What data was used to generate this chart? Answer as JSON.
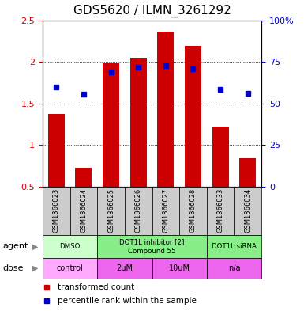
{
  "title": "GDS5620 / ILMN_3261292",
  "samples": [
    "GSM1366023",
    "GSM1366024",
    "GSM1366025",
    "GSM1366026",
    "GSM1366027",
    "GSM1366028",
    "GSM1366033",
    "GSM1366034"
  ],
  "bar_values": [
    1.37,
    0.73,
    1.98,
    2.05,
    2.36,
    2.19,
    1.22,
    0.84
  ],
  "dot_values": [
    1.7,
    1.61,
    1.88,
    1.93,
    1.95,
    1.92,
    1.67,
    1.62
  ],
  "bar_bottom": 0.5,
  "ylim": [
    0.5,
    2.5
  ],
  "y2lim": [
    0,
    100
  ],
  "yticks": [
    0.5,
    1.0,
    1.5,
    2.0,
    2.5
  ],
  "ytick_labels": [
    "0.5",
    "1",
    "1.5",
    "2",
    "2.5"
  ],
  "y2ticks": [
    0,
    25,
    50,
    75,
    100
  ],
  "y2tick_labels": [
    "0",
    "25",
    "50",
    "75",
    "100%"
  ],
  "bar_color": "#cc0000",
  "dot_color": "#0000cc",
  "agent_groups": [
    {
      "label": "DMSO",
      "cols": [
        0,
        1
      ],
      "color": "#ccffcc"
    },
    {
      "label": "DOT1L inhibitor [2]\nCompound 55",
      "cols": [
        2,
        3,
        4,
        5
      ],
      "color": "#88ee88"
    },
    {
      "label": "DOT1L siRNA",
      "cols": [
        6,
        7
      ],
      "color": "#88ee88"
    }
  ],
  "dose_groups": [
    {
      "label": "control",
      "cols": [
        0,
        1
      ],
      "color": "#ffaaff"
    },
    {
      "label": "2uM",
      "cols": [
        2,
        3
      ],
      "color": "#ee66ee"
    },
    {
      "label": "10uM",
      "cols": [
        4,
        5
      ],
      "color": "#ee66ee"
    },
    {
      "label": "n/a",
      "cols": [
        6,
        7
      ],
      "color": "#ee66ee"
    }
  ],
  "legend_items": [
    {
      "color": "#cc0000",
      "label": "transformed count"
    },
    {
      "color": "#0000cc",
      "label": "percentile rank within the sample"
    }
  ],
  "sample_box_color": "#cccccc",
  "xlabel_color": "#cc0000",
  "y2label_color": "#0000cc",
  "title_fontsize": 11,
  "tick_fontsize": 8,
  "label_fontsize": 8
}
